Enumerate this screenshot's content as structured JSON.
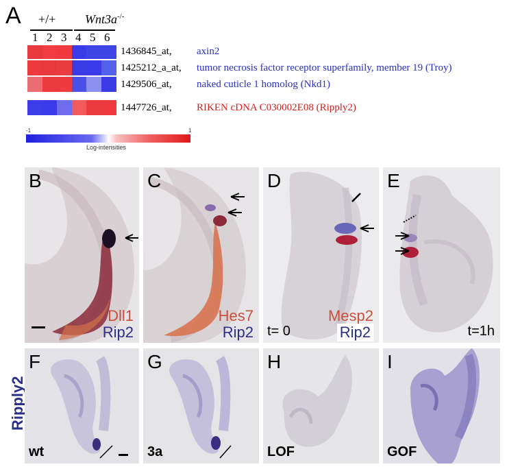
{
  "panelA": {
    "letter": "A",
    "genotype_wt": "+/+",
    "genotype_mut": "Wnt3a",
    "genotype_mut_sup": "-/-",
    "lanes": [
      "1",
      "2",
      "3",
      "4",
      "5",
      "6"
    ],
    "rows": [
      {
        "probe": "1436845_at,",
        "gene": "axin2",
        "gene_color": "#2a2fc8",
        "cells": [
          "#e83a3e",
          "#f23c40",
          "#f03a3e",
          "#3a3ae8",
          "#3f44e6",
          "#3f44e6"
        ]
      },
      {
        "probe": "1425212_a_at,",
        "gene": "tumor necrosis factor receptor superfamily, member 19 (Troy)",
        "gene_color": "#2a2fc8",
        "cells": [
          "#ee3a3c",
          "#e83a3c",
          "#e93d41",
          "#3c3ce6",
          "#3a3ae8",
          "#5560ea"
        ]
      },
      {
        "probe": "1429506_at,",
        "gene": "naked cuticle 1 homolog (Nkd1)",
        "gene_color": "#2a2fc8",
        "cells": [
          "#ec6d72",
          "#ee3a3e",
          "#ee3b3f",
          "#4a4fe6",
          "#8a8ff0",
          "#3c3ce6"
        ]
      },
      {
        "probe": "1447726_at,",
        "gene": "RIKEN cDNA C030002E08 (Ripply2)",
        "gene_color": "#d42020",
        "cells": [
          "#3c3ce8",
          "#3a3ae8",
          "#6f6cec",
          "#ee5a5e",
          "#ee3a3c",
          "#ee3a3c"
        ]
      }
    ],
    "scale_min": "-1",
    "scale_max": "1",
    "scale_label": "Log-intensities"
  },
  "panelsTop": [
    {
      "letter": "B",
      "stain1": "Dll1",
      "stain1_color": "#c8503c",
      "stain2": "Rip2",
      "stain2_color": "#2a2f8a"
    },
    {
      "letter": "C",
      "stain1": "Hes7",
      "stain1_color": "#c8503c",
      "stain2": "Rip2",
      "stain2_color": "#2a2f8a"
    },
    {
      "letter": "D",
      "time": "t= 0",
      "stain1": "Mesp2",
      "stain1_color": "#c8503c",
      "stain2": "Rip2",
      "stain2_color": "#2a2f8a"
    },
    {
      "letter": "E",
      "time": "t=1h"
    }
  ],
  "panelsBottom": [
    {
      "letter": "F",
      "label": "wt"
    },
    {
      "letter": "G",
      "label": "3a"
    },
    {
      "letter": "H",
      "label": "LOF"
    },
    {
      "letter": "I",
      "label": "GOF"
    }
  ],
  "side_label": "Ripply2"
}
